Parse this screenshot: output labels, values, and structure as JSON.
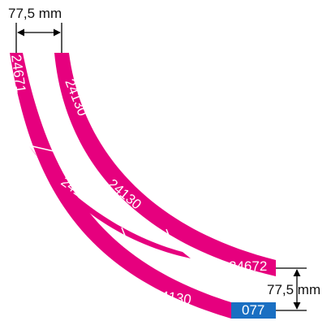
{
  "dimension_top": {
    "label": "77,5 mm"
  },
  "dimension_right": {
    "label": "77,5 mm"
  },
  "track_labels": {
    "outer_start": "24671",
    "inner_upper": "24130",
    "inner_middle": "24130",
    "outer_middle": "24130",
    "outer_lower": "24130",
    "outer_bottom": "24130",
    "inner_end": "24672",
    "straight_end": "077"
  },
  "colors": {
    "track": "#e6007e",
    "straight_piece": "#1a6fc2",
    "separator": "#ffffff",
    "dimension_line": "#000000"
  }
}
